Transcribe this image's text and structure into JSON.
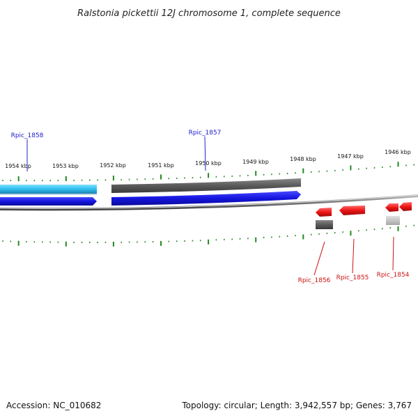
{
  "header": {
    "title": "Ralstonia pickettii 12J chromosome 1, complete sequence"
  },
  "footer": {
    "accession": "Accession: NC_010682",
    "topology": "Topology: circular; Length: 3,942,557 bp; Genes: 3,767"
  },
  "scale": {
    "unit": "kbp",
    "labels": [
      "1954 kbp",
      "1953 kbp",
      "1952 kbp",
      "1951 kbp",
      "1950 kbp",
      "1949 kbp",
      "1948 kbp",
      "1947 kbp",
      "1946 kbp"
    ]
  },
  "genes": {
    "rpic_1858": {
      "label": "Rpic_1858",
      "color": "#33bbee",
      "strand": "forward"
    },
    "rpic_1857": {
      "label": "Rpic_1857",
      "color": "#555555",
      "strand": "forward"
    },
    "rpic_1856": {
      "label": "Rpic_1856",
      "color": "#ee1111",
      "strand": "reverse"
    },
    "rpic_1855": {
      "label": "Rpic_1855",
      "color": "#ee1111",
      "strand": "reverse"
    },
    "rpic_1854": {
      "label": "Rpic_1854",
      "color": "#ee1111",
      "strand": "reverse"
    }
  },
  "colors": {
    "forward_cds": "#1111dd",
    "reverse_cds": "#ee1111",
    "tick": "#228822",
    "backbone": "#777777"
  }
}
